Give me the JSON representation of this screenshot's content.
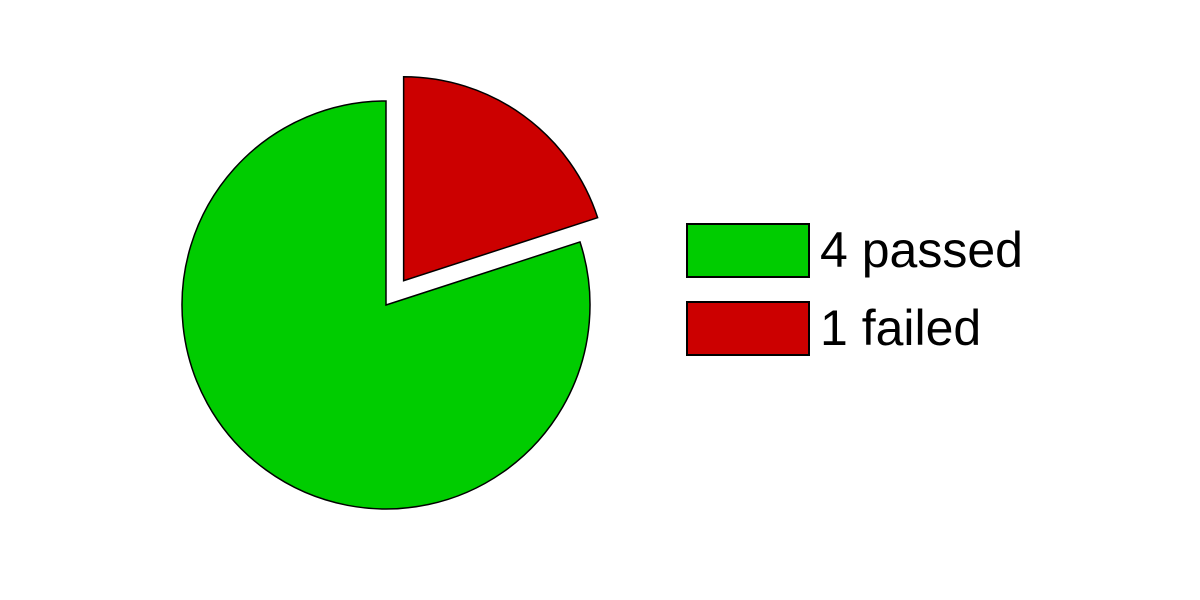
{
  "chart_data": {
    "type": "pie",
    "title": "",
    "start_angle_deg": 90,
    "direction": "clockwise",
    "exploded": [
      "failed"
    ],
    "slices": [
      {
        "key": "failed",
        "label": "1 failed",
        "value": 1,
        "color": "#cc0000"
      },
      {
        "key": "passed",
        "label": "4 passed",
        "value": 4,
        "color": "#00cc00"
      }
    ],
    "legend": {
      "position": "right",
      "entries": [
        {
          "label": "4 passed",
          "color": "#00cc00"
        },
        {
          "label": "1 failed",
          "color": "#cc0000"
        }
      ]
    }
  }
}
